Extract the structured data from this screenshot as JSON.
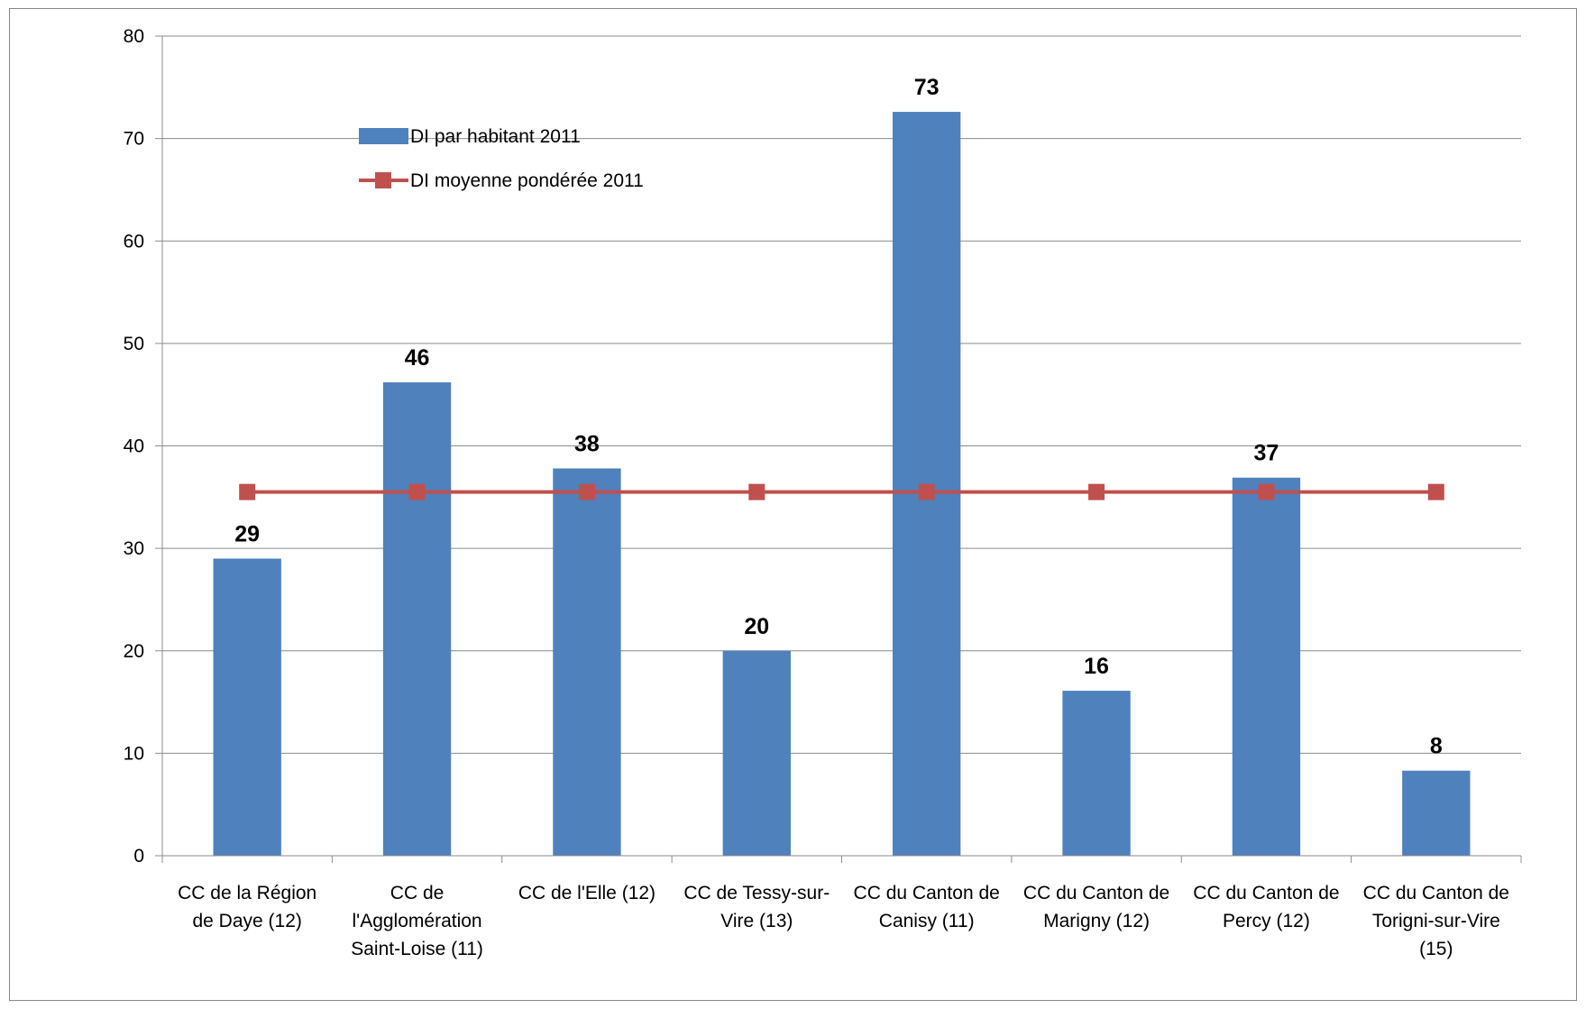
{
  "chart_data": {
    "type": "bar",
    "categories": [
      [
        "CC de la Région",
        "de Daye (12)"
      ],
      [
        "CC de",
        "l'Agglomération",
        "Saint-Loise (11)"
      ],
      [
        "CC de l'Elle (12)"
      ],
      [
        "CC de Tessy-sur-",
        "Vire (13)"
      ],
      [
        "CC du Canton de",
        "Canisy (11)"
      ],
      [
        "CC du Canton de",
        "Marigny (12)"
      ],
      [
        "CC du Canton de",
        "Percy (12)"
      ],
      [
        "CC du Canton de",
        "Torigni-sur-Vire",
        "(15)"
      ]
    ],
    "series": [
      {
        "name": "DI par habitant 2011",
        "kind": "bar",
        "color": "#4F81BD",
        "values": [
          29,
          46.2,
          37.8,
          20,
          72.6,
          16.1,
          36.9,
          8.3
        ],
        "data_labels": [
          "29",
          "46",
          "38",
          "20",
          "73",
          "16",
          "37",
          "8"
        ]
      },
      {
        "name": "DI moyenne pondérée 2011",
        "kind": "line",
        "color": "#C0504D",
        "values": [
          35.5,
          35.5,
          35.5,
          35.5,
          35.5,
          35.5,
          35.5,
          35.5
        ]
      }
    ],
    "ylim": [
      0,
      80
    ],
    "yticks": [
      0,
      10,
      20,
      30,
      40,
      50,
      60,
      70,
      80
    ],
    "grid": true,
    "legend_position": "top-left"
  }
}
